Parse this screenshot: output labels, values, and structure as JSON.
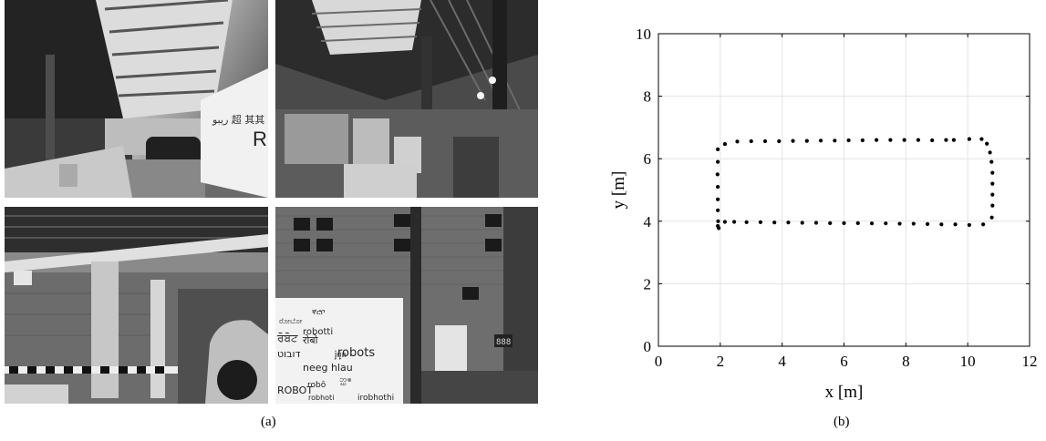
{
  "figure": {
    "panel_a_caption": "(a)",
    "panel_b_caption": "(b)"
  },
  "photos": {
    "top_left_banner_text": "RO",
    "top_left_banner_glyphs": "ريبو  超  其其",
    "bottom_right_banner_words": [
      "ኛሮቦ",
      "ರೋಬೋ",
      "robotti",
      "ਰੋਬੋਟ",
      "रोबो",
      "דובוט",
      "រ៉ូបូត",
      "neeg hlau",
      "ROBOT",
      "robots",
      "ဘ္ဃၜ",
      "robô",
      "robhoti",
      "irobhothi"
    ],
    "bottom_right_sign_text": "888"
  },
  "chart_data": {
    "type": "scatter",
    "xlabel": "x [m]",
    "ylabel": "y [m]",
    "xlim": [
      0,
      12
    ],
    "ylim": [
      0,
      10
    ],
    "xticks": [
      0,
      2,
      4,
      6,
      8,
      10,
      12
    ],
    "yticks": [
      0,
      2,
      4,
      6,
      8,
      10
    ],
    "grid": true,
    "marker_color": "#000000",
    "series": [
      {
        "points": [
          [
            1.95,
            3.78
          ],
          [
            1.92,
            3.85
          ],
          [
            1.93,
            4.0
          ],
          [
            1.92,
            4.35
          ],
          [
            1.92,
            4.7
          ],
          [
            1.92,
            5.1
          ],
          [
            1.91,
            5.5
          ],
          [
            1.92,
            5.9
          ],
          [
            1.92,
            6.3
          ],
          [
            2.15,
            6.47
          ],
          [
            2.55,
            6.55
          ],
          [
            3.0,
            6.56
          ],
          [
            3.45,
            6.56
          ],
          [
            3.9,
            6.56
          ],
          [
            4.35,
            6.57
          ],
          [
            4.8,
            6.57
          ],
          [
            5.25,
            6.58
          ],
          [
            5.7,
            6.58
          ],
          [
            6.15,
            6.59
          ],
          [
            6.6,
            6.59
          ],
          [
            7.05,
            6.6
          ],
          [
            7.5,
            6.6
          ],
          [
            7.95,
            6.6
          ],
          [
            8.4,
            6.6
          ],
          [
            8.85,
            6.59
          ],
          [
            9.3,
            6.6
          ],
          [
            9.55,
            6.6
          ],
          [
            10.05,
            6.63
          ],
          [
            10.45,
            6.63
          ],
          [
            10.62,
            6.48
          ],
          [
            10.72,
            6.2
          ],
          [
            10.77,
            5.9
          ],
          [
            10.8,
            5.55
          ],
          [
            10.8,
            5.2
          ],
          [
            10.8,
            4.85
          ],
          [
            10.8,
            4.5
          ],
          [
            10.78,
            4.12
          ],
          [
            10.5,
            3.9
          ],
          [
            10.05,
            3.88
          ],
          [
            9.6,
            3.9
          ],
          [
            9.15,
            3.9
          ],
          [
            8.7,
            3.91
          ],
          [
            8.25,
            3.92
          ],
          [
            7.8,
            3.92
          ],
          [
            7.35,
            3.93
          ],
          [
            6.9,
            3.93
          ],
          [
            6.45,
            3.94
          ],
          [
            6.0,
            3.94
          ],
          [
            5.55,
            3.94
          ],
          [
            5.1,
            3.95
          ],
          [
            4.65,
            3.95
          ],
          [
            4.2,
            3.96
          ],
          [
            3.75,
            3.96
          ],
          [
            3.3,
            3.97
          ],
          [
            2.85,
            3.97
          ],
          [
            2.45,
            3.98
          ],
          [
            2.15,
            3.98
          ]
        ]
      }
    ]
  }
}
